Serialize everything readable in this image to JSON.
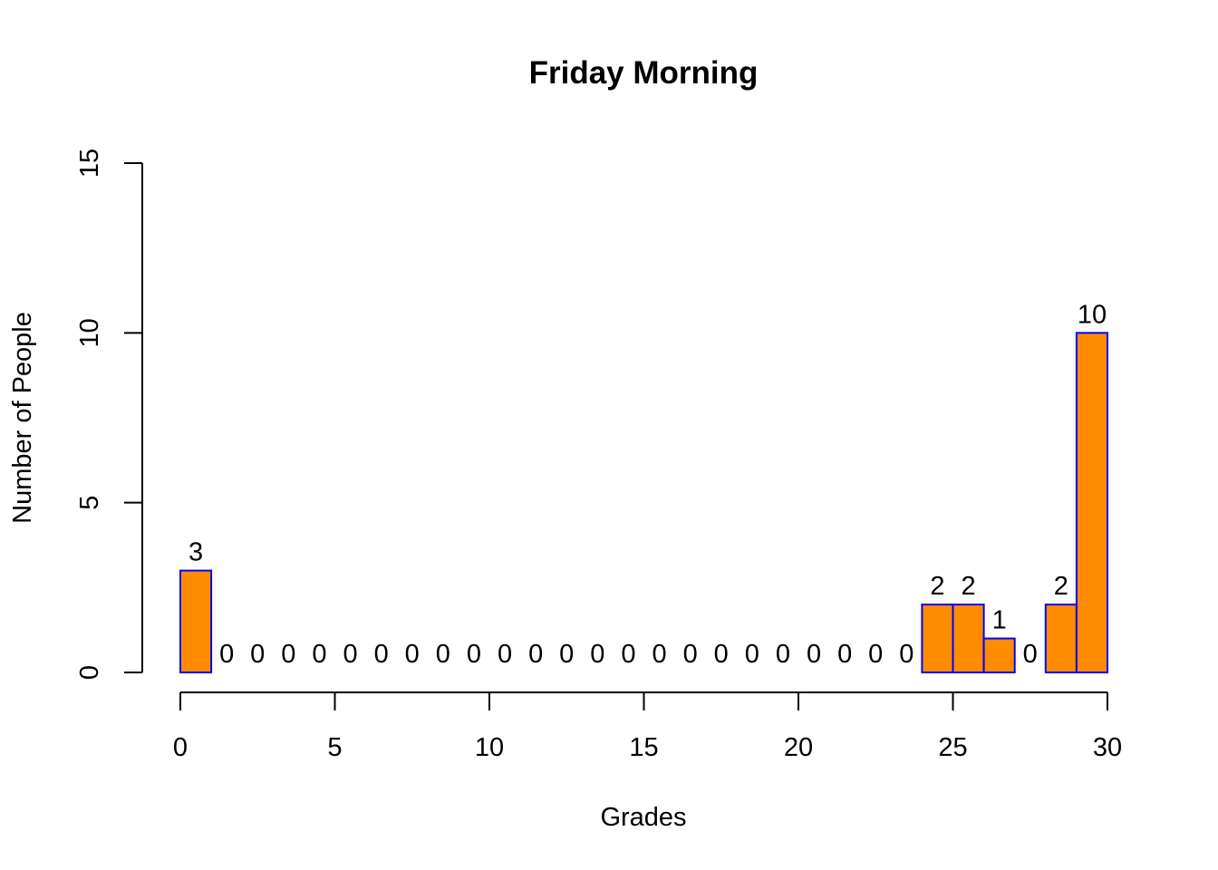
{
  "chart_data": {
    "type": "bar",
    "title": "Friday Morning",
    "xlabel": "Grades",
    "ylabel": "Number of People",
    "bin_edges": [
      0,
      1,
      2,
      3,
      4,
      5,
      6,
      7,
      8,
      9,
      10,
      11,
      12,
      13,
      14,
      15,
      16,
      17,
      18,
      19,
      20,
      21,
      22,
      23,
      24,
      25,
      26,
      27,
      28,
      29,
      30
    ],
    "values": [
      3,
      0,
      0,
      0,
      0,
      0,
      0,
      0,
      0,
      0,
      0,
      0,
      0,
      0,
      0,
      0,
      0,
      0,
      0,
      0,
      0,
      0,
      0,
      0,
      2,
      2,
      1,
      0,
      2,
      10
    ],
    "data_labels": [
      "3",
      "0",
      "0",
      "0",
      "0",
      "0",
      "0",
      "0",
      "0",
      "0",
      "0",
      "0",
      "0",
      "0",
      "0",
      "0",
      "0",
      "0",
      "0",
      "0",
      "0",
      "0",
      "0",
      "0",
      "2",
      "2",
      "1",
      "0",
      "2",
      "10"
    ],
    "xlim": [
      0,
      30
    ],
    "ylim": [
      0,
      15
    ],
    "x_ticks": [
      0,
      5,
      10,
      15,
      20,
      25,
      30
    ],
    "x_tick_labels": [
      "0",
      "5",
      "10",
      "15",
      "20",
      "25",
      "30"
    ],
    "y_ticks": [
      0,
      5,
      10,
      15
    ],
    "y_tick_labels": [
      "0",
      "5",
      "10",
      "15"
    ],
    "bar_fill_color": "#FF8C00",
    "bar_border_color": "#0000FF",
    "grid": false,
    "legend": "none"
  }
}
